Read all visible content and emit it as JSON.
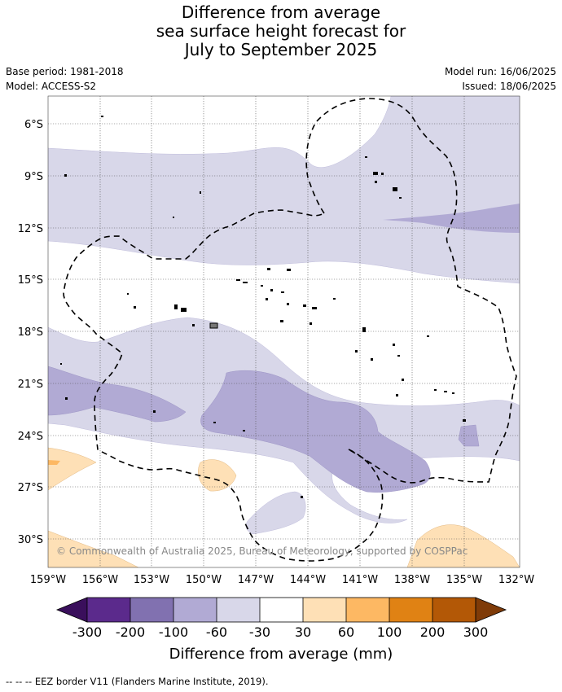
{
  "title": {
    "line1": "Difference from average",
    "line2": "sea surface height forecast for",
    "line3": "July to September 2025"
  },
  "meta": {
    "base_period": "Base period: 1981-2018",
    "model": "Model: ACCESS-S2",
    "model_run": "Model run: 16/06/2025",
    "issued": "Issued: 18/06/2025"
  },
  "map": {
    "lon_labels": [
      "159°W",
      "156°W",
      "153°W",
      "150°W",
      "147°W",
      "144°W",
      "141°W",
      "138°W",
      "135°W",
      "132°W"
    ],
    "lat_labels": [
      "6°S",
      "9°S",
      "12°S",
      "15°S",
      "18°S",
      "21°S",
      "24°S",
      "27°S",
      "30°S"
    ],
    "copyright": "© Commonwealth of Australia 2025, Bureau of Meteorology, supported by COSPPac"
  },
  "legend": {
    "title": "Difference from average (mm)",
    "ticks": [
      "-300",
      "-200",
      "-100",
      "-60",
      "-30",
      "30",
      "60",
      "100",
      "200",
      "300"
    ],
    "colors": {
      "below_min": "#3a0f5c",
      "bins": [
        "#5b2a8c",
        "#8171b0",
        "#b1aad4",
        "#d8d7e9",
        "#ffffff",
        "#fee0b6",
        "#fdb863",
        "#e08214",
        "#b35806"
      ],
      "above_max": "#7f3b08"
    }
  },
  "footer": {
    "eez_note": "--  --  -- EEZ border V11 (Flanders Marine Institute, 2019)."
  }
}
